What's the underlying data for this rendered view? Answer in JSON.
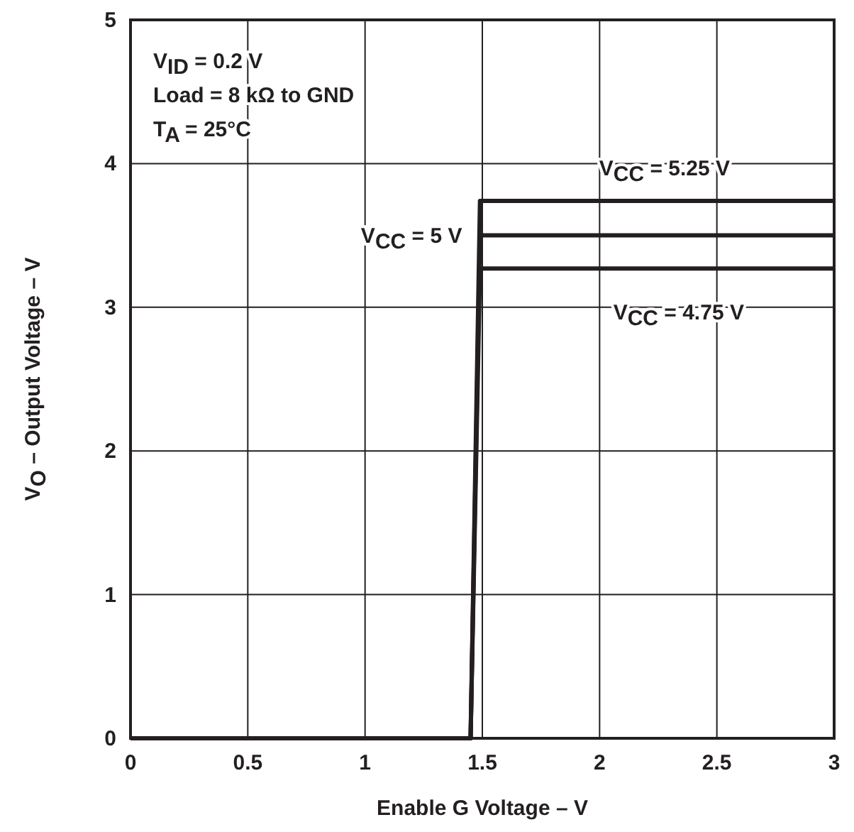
{
  "chart_data": {
    "type": "line",
    "xlabel": "Enable G Voltage – V",
    "ylabel": "V$_{O}$ – Output Voltage – V",
    "xlim": [
      0,
      3
    ],
    "xticks": [
      0,
      0.5,
      1,
      1.5,
      2,
      2.5,
      3
    ],
    "ylim": [
      0,
      5
    ],
    "yticks": [
      0,
      1,
      2,
      3,
      4,
      5
    ],
    "grid": true,
    "line_style": "solid",
    "annotations": [
      "V$_{ID}$ = 0.2 V",
      "Load = 8 kΩ to GND",
      "T$_{A}$ = 25°C"
    ],
    "series": [
      {
        "name": "V$_{CC}$ = 5.25 V",
        "color": "#231f20",
        "x": [
          0,
          1.45,
          1.49,
          3
        ],
        "values": [
          0,
          0,
          3.74,
          3.74
        ]
      },
      {
        "name": "V$_{CC}$ = 5 V",
        "color": "#231f20",
        "x": [
          0,
          1.45,
          1.49,
          3
        ],
        "values": [
          0,
          0,
          3.5,
          3.5
        ]
      },
      {
        "name": "V$_{CC}$ = 4.75 V",
        "color": "#231f20",
        "x": [
          0,
          1.45,
          1.49,
          3
        ],
        "values": [
          0,
          0,
          3.27,
          3.27
        ]
      }
    ]
  }
}
